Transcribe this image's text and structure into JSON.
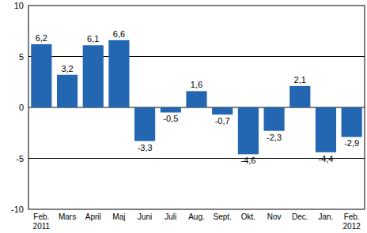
{
  "chart_data": {
    "type": "bar",
    "categories": [
      "Feb. 2011",
      "Mars",
      "April",
      "Maj",
      "Juni",
      "Juli",
      "Aug.",
      "Sept.",
      "Okt.",
      "Nov",
      "Dec.",
      "Jan.",
      "Feb. 2012"
    ],
    "values": [
      6.2,
      3.2,
      6.1,
      6.6,
      -3.3,
      -0.5,
      1.6,
      -0.7,
      -4.6,
      -2.3,
      2.1,
      -4.4,
      -2.9
    ],
    "value_labels": [
      "6,2",
      "3,2",
      "6,1",
      "6,6",
      "-3,3",
      "-0,5",
      "1,6",
      "-0,7",
      "-4,6",
      "-2,3",
      "2,1",
      "-4,4",
      "-2,9"
    ],
    "color": "#2366b1",
    "ylim": [
      -10,
      10
    ],
    "yticks": [
      -10,
      -5,
      0,
      5,
      10
    ],
    "grid": true,
    "data_labels": true
  }
}
